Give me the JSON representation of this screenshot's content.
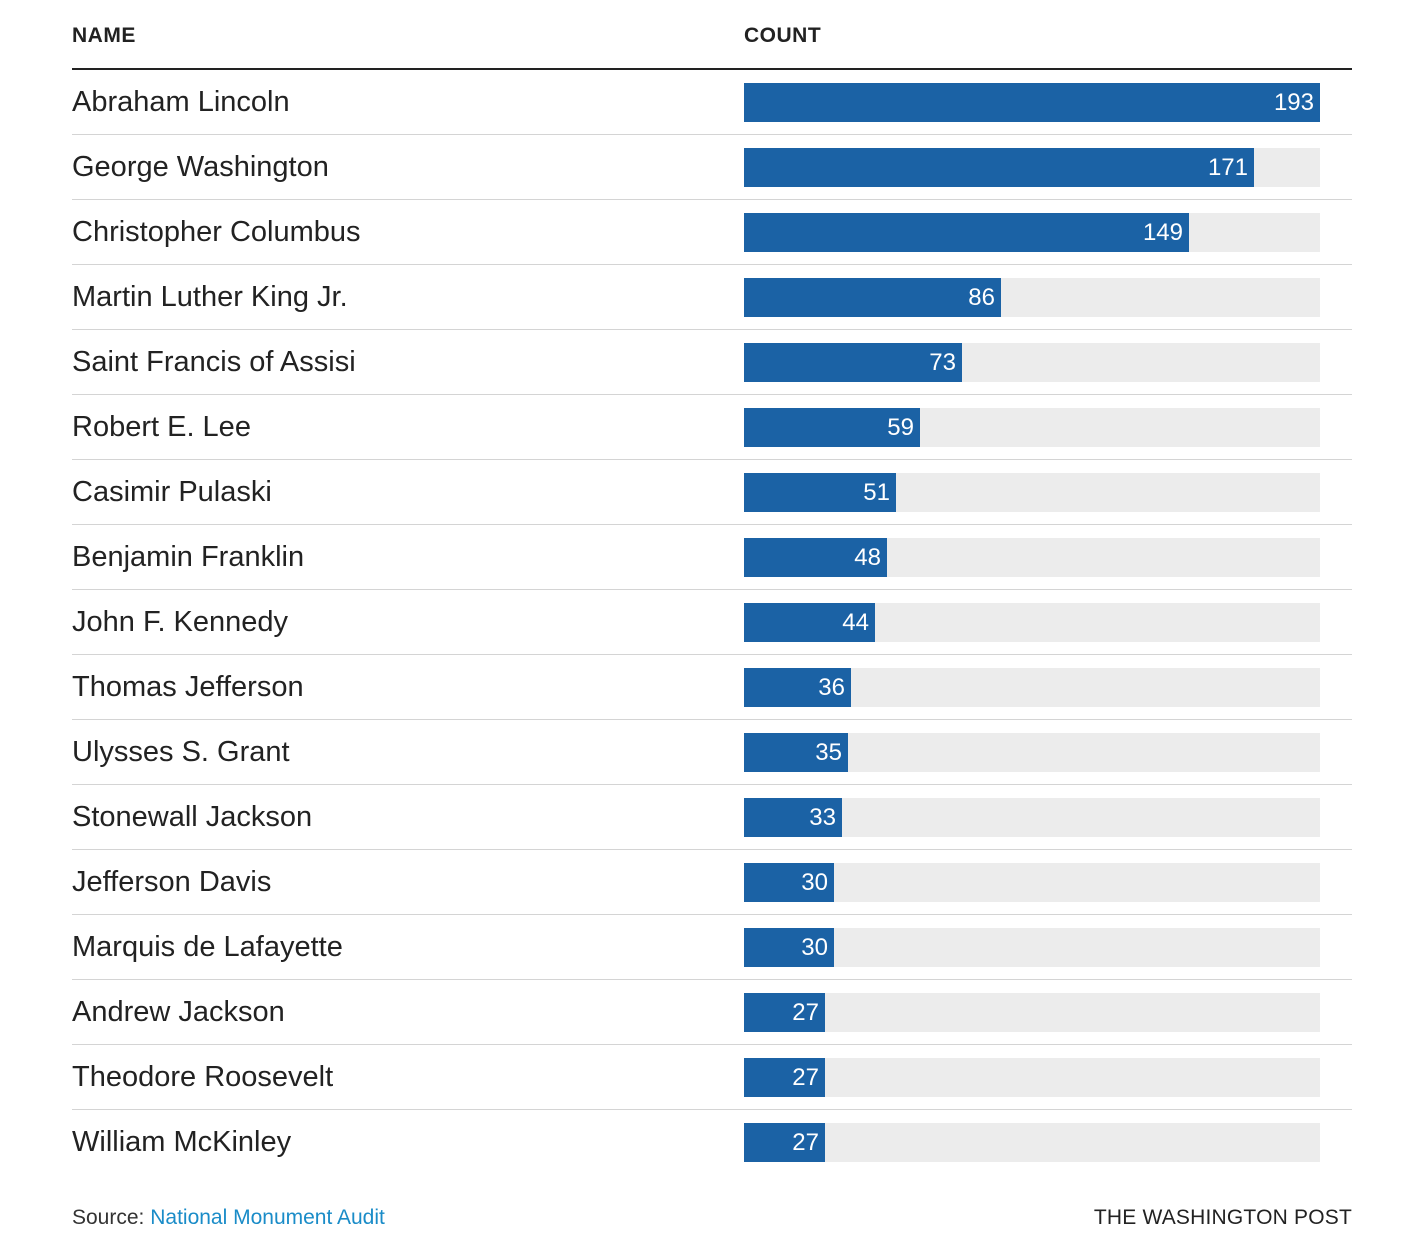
{
  "header": {
    "name_label": "NAME",
    "count_label": "COUNT"
  },
  "colors": {
    "bar": "#1b62a5",
    "track": "#ececec",
    "value_text": "#ffffff",
    "link": "#1a8cc8"
  },
  "chart_data": {
    "type": "bar",
    "orientation": "horizontal",
    "xlim": [
      0,
      193
    ],
    "grid": false,
    "categories": [
      "Abraham Lincoln",
      "George Washington",
      "Christopher Columbus",
      "Martin Luther King Jr.",
      "Saint Francis of Assisi",
      "Robert E. Lee",
      "Casimir Pulaski",
      "Benjamin Franklin",
      "John F. Kennedy",
      "Thomas Jefferson",
      "Ulysses S. Grant",
      "Stonewall Jackson",
      "Jefferson Davis",
      "Marquis de Lafayette",
      "Andrew Jackson",
      "Theodore Roosevelt",
      "William McKinley"
    ],
    "values": [
      193,
      171,
      149,
      86,
      73,
      59,
      51,
      48,
      44,
      36,
      35,
      33,
      30,
      30,
      27,
      27,
      27
    ]
  },
  "footer": {
    "source_prefix": "Source:",
    "source_link": "National Monument Audit",
    "credit": "THE WASHINGTON POST"
  }
}
